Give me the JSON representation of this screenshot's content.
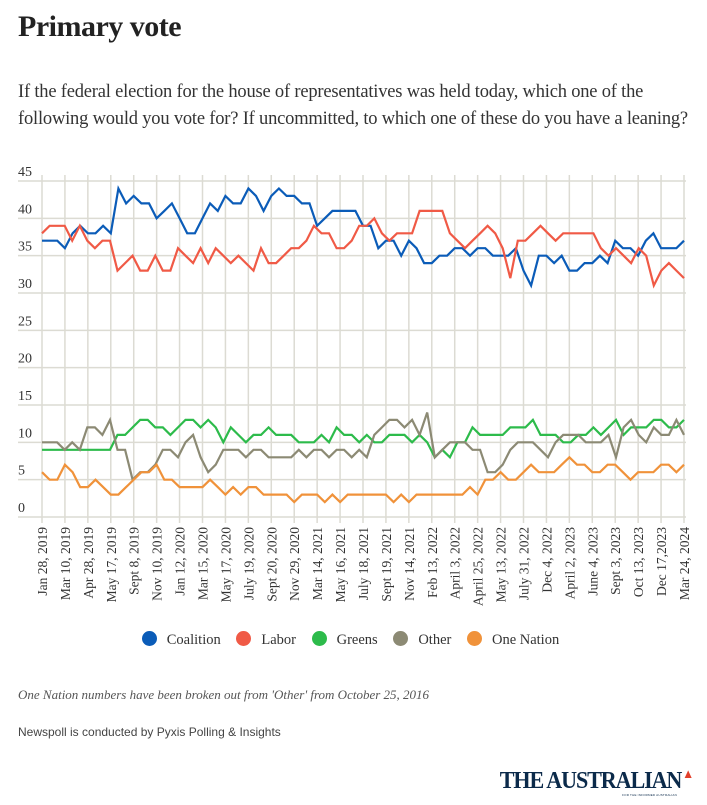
{
  "header": {
    "title": "Primary vote",
    "subtitle": "If the federal election for the house of representatives was held today, which one of the following would you vote for? If uncommitted, to which one of these do you have a leaning?"
  },
  "chart_data": {
    "type": "line",
    "title": "Primary vote",
    "xlabel": "",
    "ylabel": "",
    "ylim": [
      0,
      45
    ],
    "yticks": [
      0,
      5,
      10,
      15,
      20,
      25,
      30,
      35,
      40,
      45
    ],
    "grid": true,
    "legend_position": "bottom",
    "x_tick_labels": [
      "Jan 28, 2019",
      "Mar 10, 2019",
      "Apr 28, 2019",
      "May 17, 2019",
      "Sept 8, 2019",
      "Nov 10, 2019",
      "Jan 12, 2020",
      "Mar 15, 2020",
      "May 17, 2020",
      "July 19, 2020",
      "Sept 20, 2020",
      "Nov 29, 2020",
      "Mar 14, 2021",
      "May 16, 2021",
      "July 18, 2021",
      "Sept 19, 2021",
      "Nov 14, 2021",
      "Feb 13, 2022",
      "April 3, 2022",
      "April 25, 2022",
      "May 13, 2022",
      "July 31, 2022",
      "Dec 4, 2022",
      "April 2, 2023",
      "June 4, 2023",
      "Sept 3, 2023",
      "Oct 13, 2023",
      "Dec 17,2023",
      "Mar 24, 2024"
    ],
    "series": [
      {
        "name": "Coalition",
        "color": "#0b5cb8",
        "values": [
          37,
          37,
          37,
          36,
          38,
          39,
          38,
          38,
          39,
          38,
          44,
          42,
          43,
          42,
          42,
          40,
          41,
          42,
          40,
          38,
          38,
          40,
          42,
          41,
          43,
          42,
          42,
          44,
          43,
          41,
          43,
          44,
          43,
          43,
          42,
          42,
          39,
          40,
          41,
          41,
          41,
          41,
          39,
          39,
          36,
          37,
          37,
          35,
          37,
          36,
          34,
          34,
          35,
          35,
          36,
          36,
          35,
          36,
          36,
          35,
          35,
          35,
          36,
          33,
          31,
          35,
          35,
          34,
          35,
          33,
          33,
          34,
          34,
          35,
          34,
          37,
          36,
          36,
          35,
          37,
          38,
          36,
          36,
          36,
          37
        ]
      },
      {
        "name": "Labor",
        "color": "#f05a46",
        "values": [
          38,
          39,
          39,
          39,
          37,
          39,
          37,
          36,
          37,
          37,
          33,
          34,
          35,
          33,
          33,
          35,
          33,
          33,
          36,
          35,
          34,
          36,
          34,
          36,
          35,
          34,
          35,
          34,
          33,
          36,
          34,
          34,
          35,
          36,
          36,
          37,
          39,
          38,
          38,
          36,
          36,
          37,
          39,
          39,
          40,
          38,
          37,
          38,
          38,
          38,
          41,
          41,
          41,
          41,
          38,
          37,
          36,
          37,
          38,
          39,
          38,
          36,
          32,
          37,
          37,
          38,
          39,
          38,
          37,
          38,
          38,
          38,
          38,
          38,
          36,
          35,
          36,
          35,
          34,
          36,
          35,
          31,
          33,
          34,
          33,
          32
        ]
      },
      {
        "name": "Greens",
        "color": "#2dbb4b",
        "values": [
          9,
          9,
          9,
          9,
          9,
          9,
          9,
          9,
          9,
          9,
          11,
          11,
          12,
          13,
          13,
          12,
          12,
          11,
          12,
          13,
          13,
          12,
          13,
          12,
          10,
          12,
          11,
          10,
          11,
          11,
          12,
          11,
          11,
          11,
          10,
          10,
          10,
          11,
          10,
          12,
          11,
          11,
          10,
          11,
          10,
          10,
          11,
          11,
          11,
          10,
          11,
          10,
          8,
          9,
          8,
          10,
          10,
          12,
          11,
          11,
          11,
          11,
          12,
          12,
          12,
          13,
          11,
          11,
          11,
          10,
          10,
          11,
          11,
          12,
          11,
          12,
          13,
          11,
          12,
          12,
          12,
          13,
          13,
          12,
          12,
          13
        ]
      },
      {
        "name": "Other",
        "color": "#8c8a74",
        "values": [
          10,
          10,
          10,
          9,
          10,
          9,
          12,
          12,
          11,
          13,
          9,
          9,
          5,
          6,
          6,
          7,
          9,
          9,
          8,
          10,
          11,
          8,
          6,
          7,
          9,
          9,
          9,
          8,
          9,
          9,
          8,
          8,
          8,
          8,
          9,
          8,
          9,
          9,
          8,
          9,
          9,
          8,
          9,
          8,
          11,
          12,
          13,
          13,
          12,
          13,
          11,
          14,
          8,
          9,
          10,
          10,
          10,
          9,
          9,
          6,
          6,
          7,
          9,
          10,
          10,
          10,
          9,
          8,
          10,
          11,
          11,
          11,
          10,
          10,
          10,
          11,
          8,
          12,
          13,
          11,
          10,
          12,
          11,
          11,
          13,
          11
        ]
      },
      {
        "name": "One Nation",
        "color": "#f0923a",
        "values": [
          6,
          5,
          5,
          7,
          6,
          4,
          4,
          5,
          4,
          3,
          3,
          4,
          5,
          6,
          6,
          7,
          5,
          5,
          4,
          4,
          4,
          4,
          5,
          4,
          3,
          4,
          3,
          4,
          4,
          3,
          3,
          3,
          3,
          2,
          3,
          3,
          3,
          2,
          3,
          2,
          3,
          3,
          3,
          3,
          3,
          3,
          2,
          3,
          2,
          3,
          3,
          3,
          3,
          3,
          3,
          3,
          4,
          3,
          5,
          5,
          6,
          5,
          5,
          6,
          7,
          6,
          6,
          6,
          7,
          8,
          7,
          7,
          6,
          6,
          7,
          7,
          6,
          5,
          6,
          6,
          6,
          7,
          7,
          6,
          7
        ]
      }
    ]
  },
  "legend": [
    {
      "label": "Coalition",
      "color": "#0b5cb8"
    },
    {
      "label": "Labor",
      "color": "#f05a46"
    },
    {
      "label": "Greens",
      "color": "#2dbb4b"
    },
    {
      "label": "Other",
      "color": "#8c8a74"
    },
    {
      "label": "One Nation",
      "color": "#f0923a"
    }
  ],
  "footer": {
    "note": "One Nation numbers have been broken out from 'Other' from October 25, 2016",
    "credit": "Newspoll is conducted by Pyxis Polling & Insights",
    "logo": "THE AUSTRALIAN",
    "logo_tagline": "FOR THE INFORMED AUSTRALIAN"
  }
}
